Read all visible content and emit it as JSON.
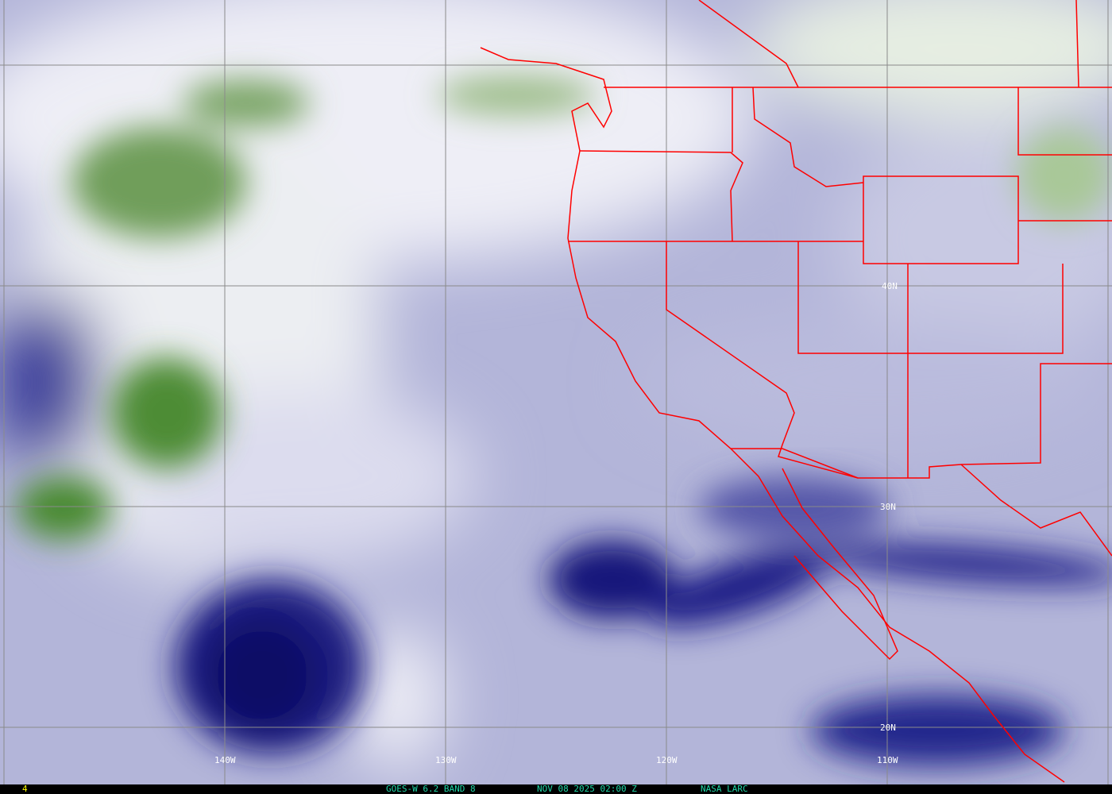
{
  "map": {
    "product": "GOES-W 6.2 BAND 8",
    "timestamp": "NOV 08 2025 02:00 Z",
    "source": "NASA LARC",
    "frame_number": "4",
    "longitude_labels": [
      "140W",
      "130W",
      "120W",
      "110W"
    ],
    "latitude_labels": [
      "40N",
      "30N",
      "20N"
    ],
    "colors": {
      "moist_white": "#f2f2f8",
      "mid_lavender": "#b4b6da",
      "dry_navy": "#0c0f70",
      "cold_green": "#3f8a2c",
      "borders": "#ff0000",
      "grid": "#8a8a8a",
      "footer_text": "#20d8a8",
      "frame_text": "#ffff00"
    }
  }
}
